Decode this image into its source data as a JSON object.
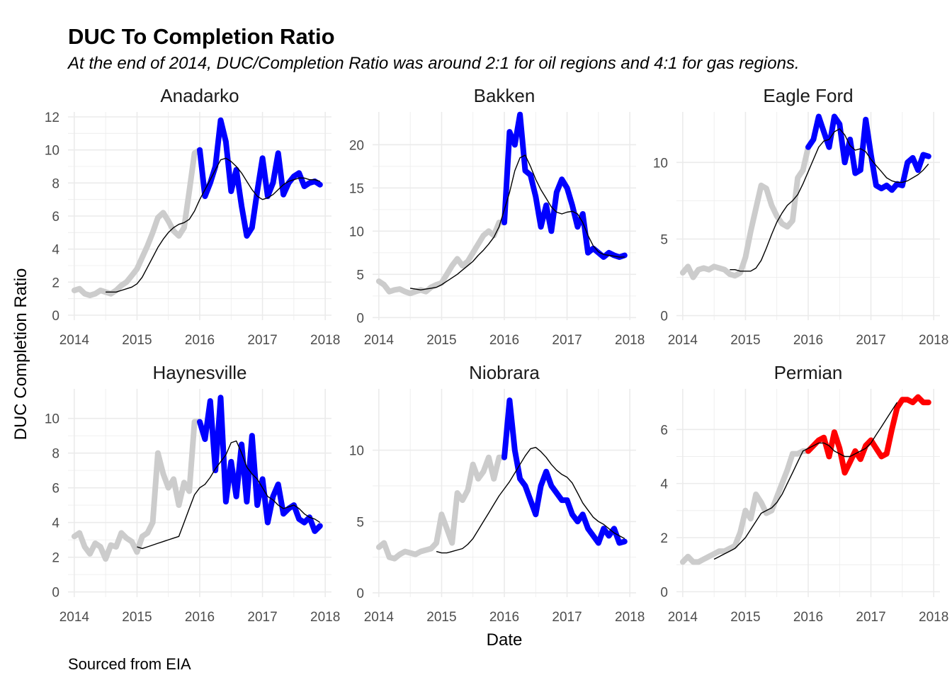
{
  "title": "DUC To Completion Ratio",
  "subtitle": "At the end of 2014, DUC/Completion Ratio was around 2:1 for oil regions and 4:1 for gas regions.",
  "caption": "Sourced from EIA",
  "chart_data": {
    "type": "line",
    "xlabel": "Date",
    "ylabel": "DUC Completion Ratio",
    "x_ticks": [
      "2014",
      "2015",
      "2016",
      "2017",
      "2018"
    ],
    "x_domain": [
      2013.9,
      2018.1
    ],
    "grid": true,
    "colors": {
      "history": "#cccccc",
      "oil_recent": "#0000ff",
      "gas_recent": "#ff0000",
      "trend": "#000000",
      "grid": "#ebebeb"
    },
    "recent_start": 2016.0,
    "x": [
      2014.0,
      2014.083,
      2014.167,
      2014.25,
      2014.333,
      2014.417,
      2014.5,
      2014.583,
      2014.667,
      2014.75,
      2014.833,
      2014.917,
      2015.0,
      2015.083,
      2015.167,
      2015.25,
      2015.333,
      2015.417,
      2015.5,
      2015.583,
      2015.667,
      2015.75,
      2015.833,
      2015.917,
      2016.0,
      2016.083,
      2016.167,
      2016.25,
      2016.333,
      2016.417,
      2016.5,
      2016.583,
      2016.667,
      2016.75,
      2016.833,
      2016.917,
      2017.0,
      2017.083,
      2017.167,
      2017.25,
      2017.333,
      2017.417,
      2017.5,
      2017.583,
      2017.667,
      2017.75,
      2017.833,
      2017.917
    ],
    "trend_x": [
      2014.5,
      2014.583,
      2014.667,
      2014.75,
      2014.833,
      2014.917,
      2015.0,
      2015.083,
      2015.167,
      2015.25,
      2015.333,
      2015.417,
      2015.5,
      2015.583,
      2015.667,
      2015.75,
      2015.833,
      2015.917,
      2016.0,
      2016.083,
      2016.167,
      2016.25,
      2016.333,
      2016.417,
      2016.5,
      2016.583,
      2016.667,
      2016.75,
      2016.833,
      2016.917,
      2017.0,
      2017.083,
      2017.167,
      2017.25,
      2017.333,
      2017.417,
      2017.5,
      2017.583,
      2017.667,
      2017.75,
      2017.833,
      2017.917
    ],
    "panels": [
      {
        "name": "Anadarko",
        "ylim": [
          -0.3,
          12.3
        ],
        "y_ticks": [
          0,
          2,
          4,
          6,
          8,
          10,
          12
        ],
        "recent_color": "#0000ff",
        "values": [
          1.5,
          1.6,
          1.3,
          1.2,
          1.3,
          1.5,
          1.4,
          1.3,
          1.5,
          1.8,
          2.0,
          2.4,
          2.8,
          3.5,
          4.2,
          5.0,
          5.9,
          6.2,
          5.7,
          5.1,
          4.8,
          5.3,
          7.5,
          9.8,
          10.0,
          7.2,
          8.0,
          9.0,
          11.8,
          10.5,
          7.5,
          8.8,
          6.6,
          4.8,
          5.3,
          7.5,
          9.5,
          7.2,
          8.0,
          9.8,
          7.3,
          8.0,
          8.4,
          8.6,
          7.8,
          8.0,
          8.1,
          7.9
        ],
        "trend": [
          1.4,
          1.4,
          1.4,
          1.5,
          1.6,
          1.7,
          1.9,
          2.3,
          2.9,
          3.5,
          4.1,
          4.6,
          5.0,
          5.3,
          5.5,
          5.6,
          5.8,
          6.3,
          7.0,
          7.6,
          8.2,
          8.8,
          9.4,
          9.5,
          9.3,
          9.0,
          8.6,
          8.1,
          7.6,
          7.2,
          7.0,
          7.1,
          7.3,
          7.6,
          7.9,
          8.1,
          8.2,
          8.3,
          8.3,
          8.2,
          8.2,
          8.1
        ]
      },
      {
        "name": "Bakken",
        "ylim": [
          -0.3,
          23.8
        ],
        "y_ticks": [
          0,
          5,
          10,
          15,
          20
        ],
        "recent_color": "#0000ff",
        "values": [
          4.2,
          3.8,
          3.0,
          3.2,
          3.3,
          3.0,
          2.8,
          3.0,
          3.2,
          3.0,
          3.5,
          3.8,
          4.0,
          5.0,
          6.0,
          6.8,
          6.0,
          6.5,
          7.5,
          8.5,
          9.5,
          10.0,
          9.5,
          11.0,
          11.0,
          21.5,
          20.0,
          23.5,
          17.0,
          16.5,
          14.0,
          10.5,
          13.0,
          10.0,
          14.5,
          16.0,
          15.0,
          13.0,
          10.5,
          12.0,
          7.5,
          8.0,
          7.5,
          7.0,
          7.5,
          7.2,
          7.0,
          7.2
        ],
        "trend": [
          3.4,
          3.3,
          3.2,
          3.3,
          3.4,
          3.5,
          3.8,
          4.2,
          4.6,
          5.0,
          5.5,
          6.0,
          6.5,
          7.2,
          7.8,
          8.5,
          9.3,
          10.5,
          12.5,
          14.5,
          17.0,
          18.5,
          18.8,
          17.5,
          16.0,
          14.8,
          13.8,
          12.8,
          12.2,
          12.0,
          12.2,
          12.3,
          12.0,
          11.0,
          9.5,
          8.3,
          7.6,
          7.3,
          7.2,
          7.1,
          7.0,
          7.0
        ]
      },
      {
        "name": "Eagle Ford",
        "ylim": [
          -0.3,
          13.3
        ],
        "y_ticks": [
          0,
          5,
          10
        ],
        "recent_color": "#0000ff",
        "values": [
          2.8,
          3.2,
          2.5,
          3.0,
          3.1,
          3.0,
          3.2,
          3.1,
          3.0,
          2.7,
          2.6,
          2.8,
          3.8,
          5.5,
          7.0,
          8.5,
          8.3,
          7.2,
          6.5,
          6.0,
          5.8,
          6.2,
          9.0,
          9.5,
          11.0,
          11.5,
          13.0,
          12.0,
          11.0,
          13.0,
          12.5,
          10.0,
          11.5,
          9.3,
          9.5,
          12.8,
          10.5,
          8.5,
          8.3,
          8.5,
          8.2,
          8.6,
          8.5,
          10.0,
          10.3,
          9.5,
          10.5,
          10.4
        ],
        "trend": [
          3.0,
          3.0,
          2.9,
          2.9,
          2.9,
          3.1,
          3.6,
          4.4,
          5.3,
          6.1,
          6.7,
          7.2,
          7.5,
          7.9,
          8.6,
          9.4,
          10.2,
          11.0,
          11.4,
          11.5,
          12.0,
          12.2,
          11.8,
          11.1,
          10.8,
          10.9,
          10.7,
          10.2,
          9.8,
          9.4,
          9.0,
          8.8,
          8.7,
          8.7,
          8.8,
          9.0,
          9.2,
          9.5,
          9.9
        ],
        "trend_offset": 3
      },
      {
        "name": "Haynesville",
        "ylim": [
          -0.3,
          11.7
        ],
        "y_ticks": [
          0,
          2,
          4,
          6,
          8,
          10
        ],
        "recent_color": "#0000ff",
        "values": [
          3.2,
          3.4,
          2.6,
          2.2,
          2.8,
          2.6,
          1.9,
          2.7,
          2.6,
          3.4,
          3.1,
          2.9,
          2.3,
          3.2,
          3.4,
          4.0,
          8.0,
          6.8,
          6.0,
          6.5,
          5.0,
          6.3,
          5.8,
          9.8,
          9.8,
          8.8,
          11.0,
          7.0,
          11.2,
          5.2,
          7.5,
          5.5,
          8.5,
          5.2,
          9.0,
          5.0,
          6.5,
          4.0,
          5.5,
          6.2,
          4.5,
          4.8,
          5.0,
          4.2,
          4.0,
          4.3,
          3.5,
          3.8
        ],
        "trend": [
          2.6,
          2.5,
          2.6,
          2.7,
          2.8,
          2.9,
          3.0,
          3.1,
          3.2,
          4.0,
          4.8,
          5.6,
          6.0,
          6.2,
          6.6,
          7.1,
          7.5,
          7.9,
          8.6,
          8.7,
          8.0,
          7.2,
          6.8,
          6.5,
          6.0,
          5.5,
          5.3,
          5.0,
          4.8,
          4.9,
          5.0,
          4.8,
          4.5,
          4.3,
          4.2,
          4.0
        ],
        "trend_offset": 6
      },
      {
        "name": "Niobrara",
        "ylim": [
          -0.3,
          14.3
        ],
        "y_ticks": [
          0,
          5,
          10
        ],
        "recent_color": "#0000ff",
        "values": [
          3.2,
          3.5,
          2.5,
          2.4,
          2.7,
          2.9,
          2.8,
          2.7,
          2.9,
          3.0,
          3.1,
          3.5,
          5.5,
          4.5,
          3.5,
          7.0,
          6.5,
          7.2,
          9.0,
          8.0,
          8.5,
          9.5,
          8.0,
          9.5,
          9.5,
          13.5,
          10.0,
          8.0,
          7.5,
          6.5,
          5.5,
          7.5,
          8.5,
          7.5,
          7.0,
          6.5,
          6.5,
          5.5,
          5.0,
          5.5,
          4.5,
          4.0,
          3.5,
          4.5,
          4.0,
          4.5,
          3.5,
          3.6
        ],
        "trend": [
          2.9,
          2.8,
          2.8,
          2.9,
          3.0,
          3.1,
          3.4,
          3.8,
          4.4,
          5.0,
          5.6,
          6.2,
          6.8,
          7.3,
          7.8,
          8.4,
          9.0,
          9.6,
          10.1,
          10.2,
          9.9,
          9.5,
          9.0,
          8.6,
          8.3,
          8.1,
          7.7,
          7.0,
          6.3,
          5.8,
          5.3,
          5.0,
          4.8,
          4.5,
          4.2,
          4.0,
          3.8
        ],
        "trend_offset": 5
      },
      {
        "name": "Permian",
        "ylim": [
          -0.2,
          7.5
        ],
        "y_ticks": [
          0,
          2,
          4,
          6
        ],
        "recent_color": "#ff0000",
        "values": [
          1.1,
          1.3,
          1.1,
          1.1,
          1.2,
          1.3,
          1.4,
          1.5,
          1.5,
          1.6,
          1.7,
          2.2,
          3.0,
          2.7,
          3.6,
          3.3,
          2.9,
          3.0,
          3.5,
          4.0,
          4.5,
          5.1,
          5.1,
          5.2,
          5.2,
          5.4,
          5.6,
          5.7,
          5.0,
          5.9,
          5.3,
          4.4,
          4.8,
          5.2,
          4.9,
          5.4,
          5.6,
          5.3,
          5.0,
          5.1,
          6.0,
          6.8,
          7.1,
          7.1,
          7.0,
          7.2,
          7.0,
          7.0
        ],
        "trend": [
          1.2,
          1.3,
          1.4,
          1.5,
          1.6,
          1.8,
          2.0,
          2.3,
          2.6,
          2.9,
          3.0,
          3.1,
          3.3,
          3.6,
          4.0,
          4.4,
          4.8,
          5.2,
          5.3,
          5.4,
          5.5,
          5.5,
          5.4,
          5.2,
          5.1,
          5.0,
          5.0,
          5.1,
          5.2,
          5.3,
          5.5,
          5.8,
          6.1,
          6.4,
          6.7,
          7.0
        ]
      }
    ]
  }
}
